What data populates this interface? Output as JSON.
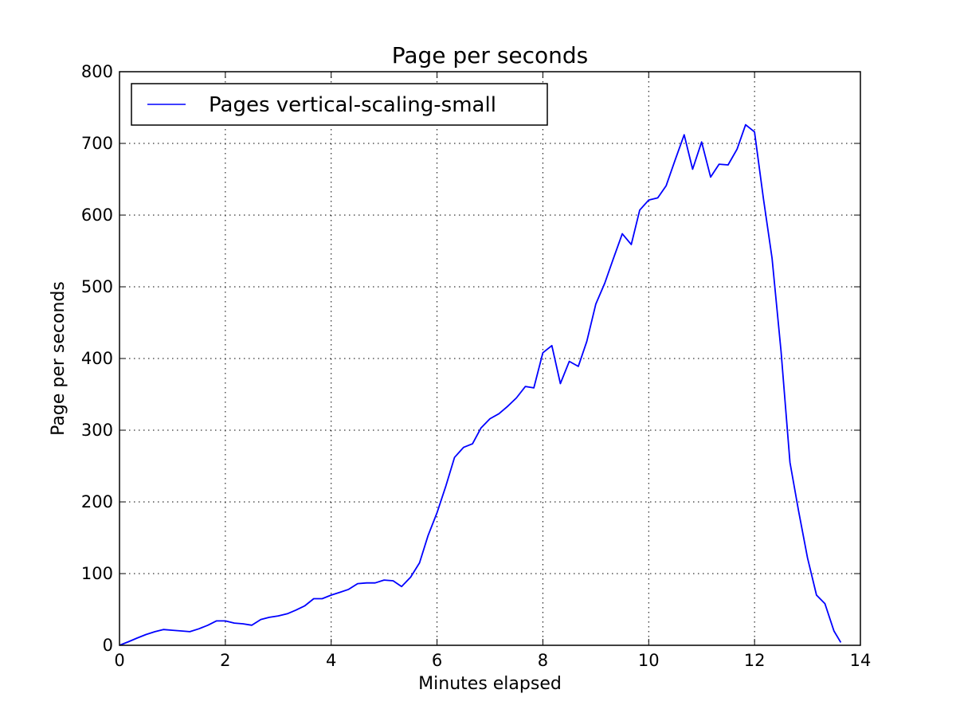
{
  "chart_data": {
    "type": "line",
    "title": "Page per seconds",
    "xlabel": "Minutes elapsed",
    "ylabel": "Page per seconds",
    "xlim": [
      0,
      14
    ],
    "ylim": [
      0,
      800
    ],
    "xticks": [
      0,
      2,
      4,
      6,
      8,
      10,
      12,
      14
    ],
    "yticks": [
      0,
      100,
      200,
      300,
      400,
      500,
      600,
      700,
      800
    ],
    "grid": true,
    "legend_position": "top-left",
    "series": [
      {
        "name": "Pages vertical-scaling-small",
        "color": "#0000ff",
        "points": [
          [
            0.0,
            0
          ],
          [
            0.17,
            5
          ],
          [
            0.33,
            10
          ],
          [
            0.5,
            15
          ],
          [
            0.67,
            19
          ],
          [
            0.83,
            22
          ],
          [
            1.0,
            21
          ],
          [
            1.17,
            20
          ],
          [
            1.33,
            19
          ],
          [
            1.5,
            23
          ],
          [
            1.67,
            28
          ],
          [
            1.83,
            34
          ],
          [
            2.0,
            34
          ],
          [
            2.17,
            31
          ],
          [
            2.33,
            30
          ],
          [
            2.5,
            28
          ],
          [
            2.67,
            36
          ],
          [
            2.83,
            39
          ],
          [
            3.0,
            41
          ],
          [
            3.17,
            44
          ],
          [
            3.33,
            49
          ],
          [
            3.5,
            55
          ],
          [
            3.67,
            65
          ],
          [
            3.83,
            65
          ],
          [
            4.0,
            70
          ],
          [
            4.17,
            74
          ],
          [
            4.33,
            78
          ],
          [
            4.5,
            86
          ],
          [
            4.67,
            87
          ],
          [
            4.83,
            87
          ],
          [
            5.0,
            91
          ],
          [
            5.17,
            90
          ],
          [
            5.33,
            82
          ],
          [
            5.5,
            95
          ],
          [
            5.67,
            115
          ],
          [
            5.83,
            153
          ],
          [
            6.0,
            185
          ],
          [
            6.17,
            223
          ],
          [
            6.33,
            262
          ],
          [
            6.5,
            276
          ],
          [
            6.67,
            281
          ],
          [
            6.83,
            303
          ],
          [
            7.0,
            316
          ],
          [
            7.17,
            323
          ],
          [
            7.33,
            333
          ],
          [
            7.5,
            345
          ],
          [
            7.67,
            361
          ],
          [
            7.83,
            359
          ],
          [
            8.0,
            408
          ],
          [
            8.17,
            418
          ],
          [
            8.33,
            365
          ],
          [
            8.5,
            396
          ],
          [
            8.67,
            389
          ],
          [
            8.83,
            424
          ],
          [
            9.0,
            476
          ],
          [
            9.17,
            505
          ],
          [
            9.33,
            539
          ],
          [
            9.5,
            574
          ],
          [
            9.67,
            559
          ],
          [
            9.83,
            607
          ],
          [
            10.0,
            621
          ],
          [
            10.17,
            624
          ],
          [
            10.33,
            641
          ],
          [
            10.5,
            677
          ],
          [
            10.67,
            712
          ],
          [
            10.83,
            664
          ],
          [
            11.0,
            702
          ],
          [
            11.17,
            653
          ],
          [
            11.33,
            671
          ],
          [
            11.5,
            670
          ],
          [
            11.67,
            692
          ],
          [
            11.83,
            726
          ],
          [
            12.0,
            716
          ],
          [
            12.17,
            622
          ],
          [
            12.33,
            540
          ],
          [
            12.5,
            410
          ],
          [
            12.67,
            255
          ],
          [
            12.83,
            188
          ],
          [
            13.0,
            122
          ],
          [
            13.17,
            70
          ],
          [
            13.33,
            58
          ],
          [
            13.5,
            20
          ],
          [
            13.63,
            4
          ]
        ]
      }
    ]
  }
}
